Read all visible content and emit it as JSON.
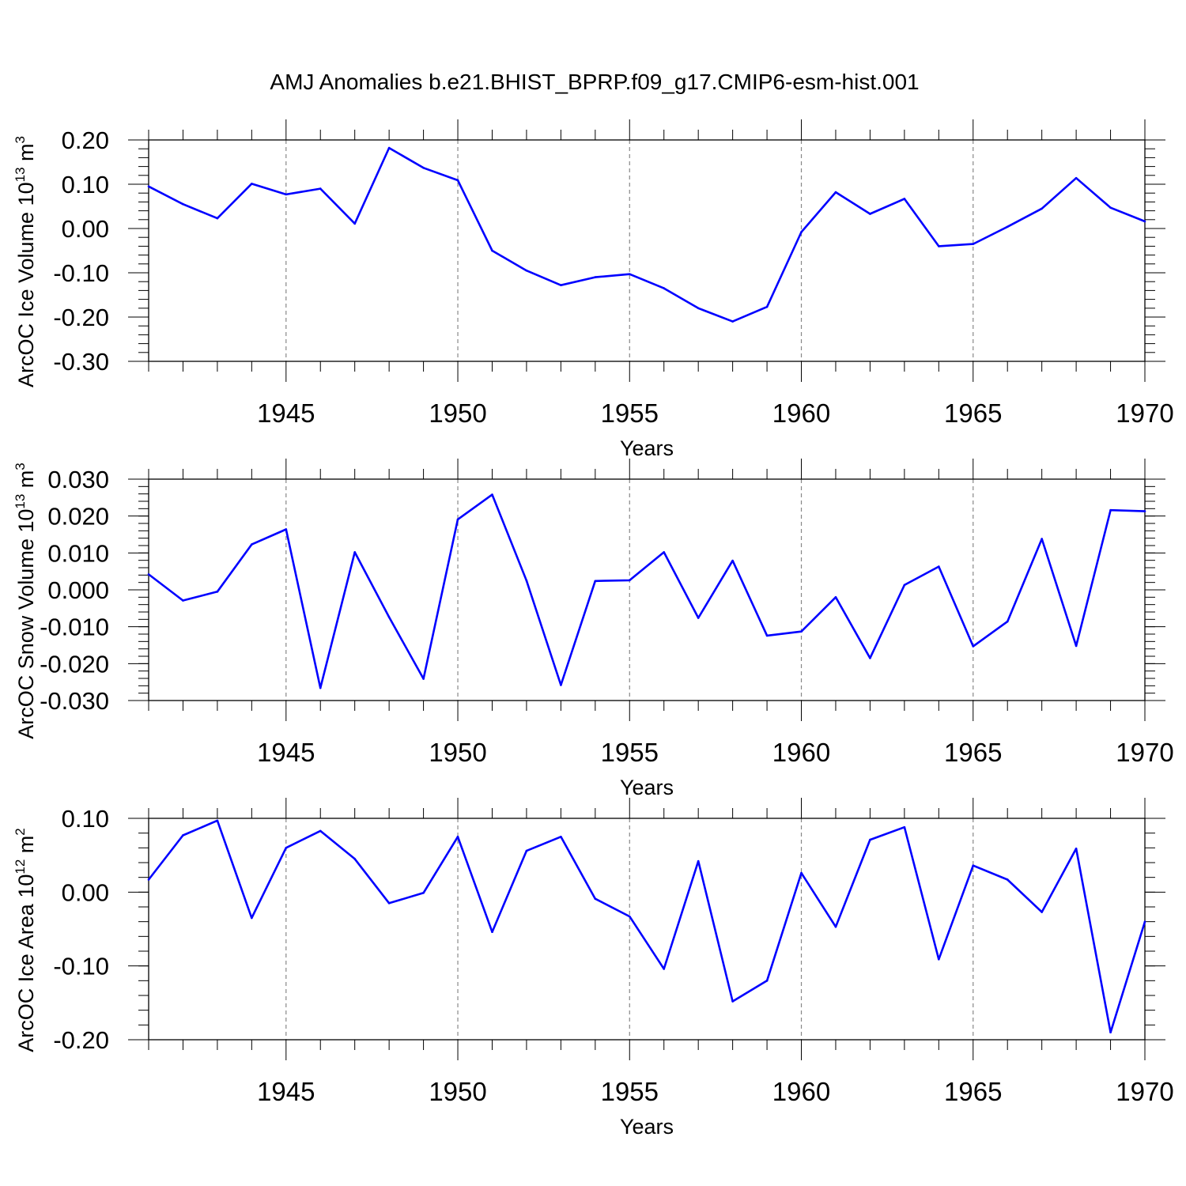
{
  "chart_data": [
    {
      "type": "line",
      "title": "AMJ Anomalies b.e21.BHIST_BPRP.f09_g17.CMIP6-esm-hist.001",
      "ylabel": {
        "base": "ArcOC Ice Volume 10",
        "exp": "13",
        "unit": " m",
        "unit_exp": "3"
      },
      "xlabel": "Years",
      "xlim": [
        1941,
        1970
      ],
      "ylim": [
        -0.3,
        0.2
      ],
      "x_ticks": [
        1945,
        1950,
        1955,
        1960,
        1965,
        1970
      ],
      "y_ticks": [
        0.2,
        0.1,
        0.0,
        -0.1,
        -0.2,
        -0.3
      ],
      "y_tick_labels": [
        "0.20",
        "0.10",
        "0.00",
        "-0.10",
        "-0.20",
        "-0.30"
      ],
      "y_minor_step": 0.02,
      "x": [
        1941,
        1942,
        1943,
        1944,
        1945,
        1946,
        1947,
        1948,
        1949,
        1950,
        1951,
        1952,
        1953,
        1954,
        1955,
        1956,
        1957,
        1958,
        1959,
        1960,
        1961,
        1962,
        1963,
        1964,
        1965,
        1966,
        1967,
        1968,
        1969,
        1970
      ],
      "series": [
        {
          "name": "Ice Volume",
          "color": "#0000ff",
          "values": [
            0.095,
            0.055,
            0.023,
            0.101,
            0.077,
            0.09,
            0.011,
            0.182,
            0.137,
            0.109,
            -0.05,
            -0.095,
            -0.128,
            -0.11,
            -0.103,
            -0.135,
            -0.18,
            -0.21,
            -0.177,
            -0.008,
            0.082,
            0.033,
            0.067,
            -0.04,
            -0.035,
            0.004,
            0.045,
            0.114,
            0.047,
            0.016
          ]
        }
      ],
      "grid": "dashed vertical at major x ticks"
    },
    {
      "type": "line",
      "title": "",
      "ylabel": {
        "base": "ArcOC Snow Volume 10",
        "exp": "13",
        "unit": " m",
        "unit_exp": "3"
      },
      "xlabel": "Years",
      "xlim": [
        1941,
        1970
      ],
      "ylim": [
        -0.03,
        0.03
      ],
      "x_ticks": [
        1945,
        1950,
        1955,
        1960,
        1965,
        1970
      ],
      "y_ticks": [
        0.03,
        0.02,
        0.01,
        0.0,
        -0.01,
        -0.02,
        -0.03
      ],
      "y_tick_labels": [
        "0.030",
        "0.020",
        "0.010",
        "0.000",
        "-0.010",
        "-0.020",
        "-0.030"
      ],
      "y_minor_step": 0.002,
      "x": [
        1941,
        1942,
        1943,
        1944,
        1945,
        1946,
        1947,
        1948,
        1949,
        1950,
        1951,
        1952,
        1953,
        1954,
        1955,
        1956,
        1957,
        1958,
        1959,
        1960,
        1961,
        1962,
        1963,
        1964,
        1965,
        1966,
        1967,
        1968,
        1969,
        1970
      ],
      "series": [
        {
          "name": "Snow Volume",
          "color": "#0000ff",
          "values": [
            0.0042,
            -0.0029,
            -0.0005,
            0.0123,
            0.0164,
            -0.0266,
            0.0102,
            -0.0074,
            -0.0241,
            0.0191,
            0.0258,
            0.0025,
            -0.0258,
            0.0024,
            0.0026,
            0.0102,
            -0.0076,
            0.0079,
            -0.0124,
            -0.0113,
            -0.002,
            -0.0185,
            0.0013,
            0.0063,
            -0.0153,
            -0.0086,
            0.0138,
            -0.0152,
            0.0216,
            0.0213
          ]
        }
      ],
      "grid": "dashed vertical at major x ticks"
    },
    {
      "type": "line",
      "title": "",
      "ylabel": {
        "base": "ArcOC Ice Area 10",
        "exp": "12",
        "unit": " m",
        "unit_exp": "2"
      },
      "xlabel": "Years",
      "xlim": [
        1941,
        1970
      ],
      "ylim": [
        -0.2,
        0.1
      ],
      "x_ticks": [
        1945,
        1950,
        1955,
        1960,
        1965,
        1970
      ],
      "y_ticks": [
        0.1,
        0.0,
        -0.1,
        -0.2
      ],
      "y_tick_labels": [
        "0.10",
        "0.00",
        "-0.10",
        "-0.20"
      ],
      "y_minor_step": 0.02,
      "x": [
        1941,
        1942,
        1943,
        1944,
        1945,
        1946,
        1947,
        1948,
        1949,
        1950,
        1951,
        1952,
        1953,
        1954,
        1955,
        1956,
        1957,
        1958,
        1959,
        1960,
        1961,
        1962,
        1963,
        1964,
        1965,
        1966,
        1967,
        1968,
        1969,
        1970
      ],
      "series": [
        {
          "name": "Ice Area",
          "color": "#0000ff",
          "values": [
            0.017,
            0.077,
            0.097,
            -0.035,
            0.06,
            0.083,
            0.045,
            -0.015,
            -0.001,
            0.075,
            -0.054,
            0.056,
            0.075,
            -0.009,
            -0.033,
            -0.104,
            0.042,
            -0.148,
            -0.12,
            0.026,
            -0.047,
            0.071,
            0.088,
            -0.091,
            0.036,
            0.017,
            -0.027,
            0.059,
            -0.19,
            -0.04
          ]
        }
      ],
      "grid": "dashed vertical at major x ticks"
    }
  ]
}
